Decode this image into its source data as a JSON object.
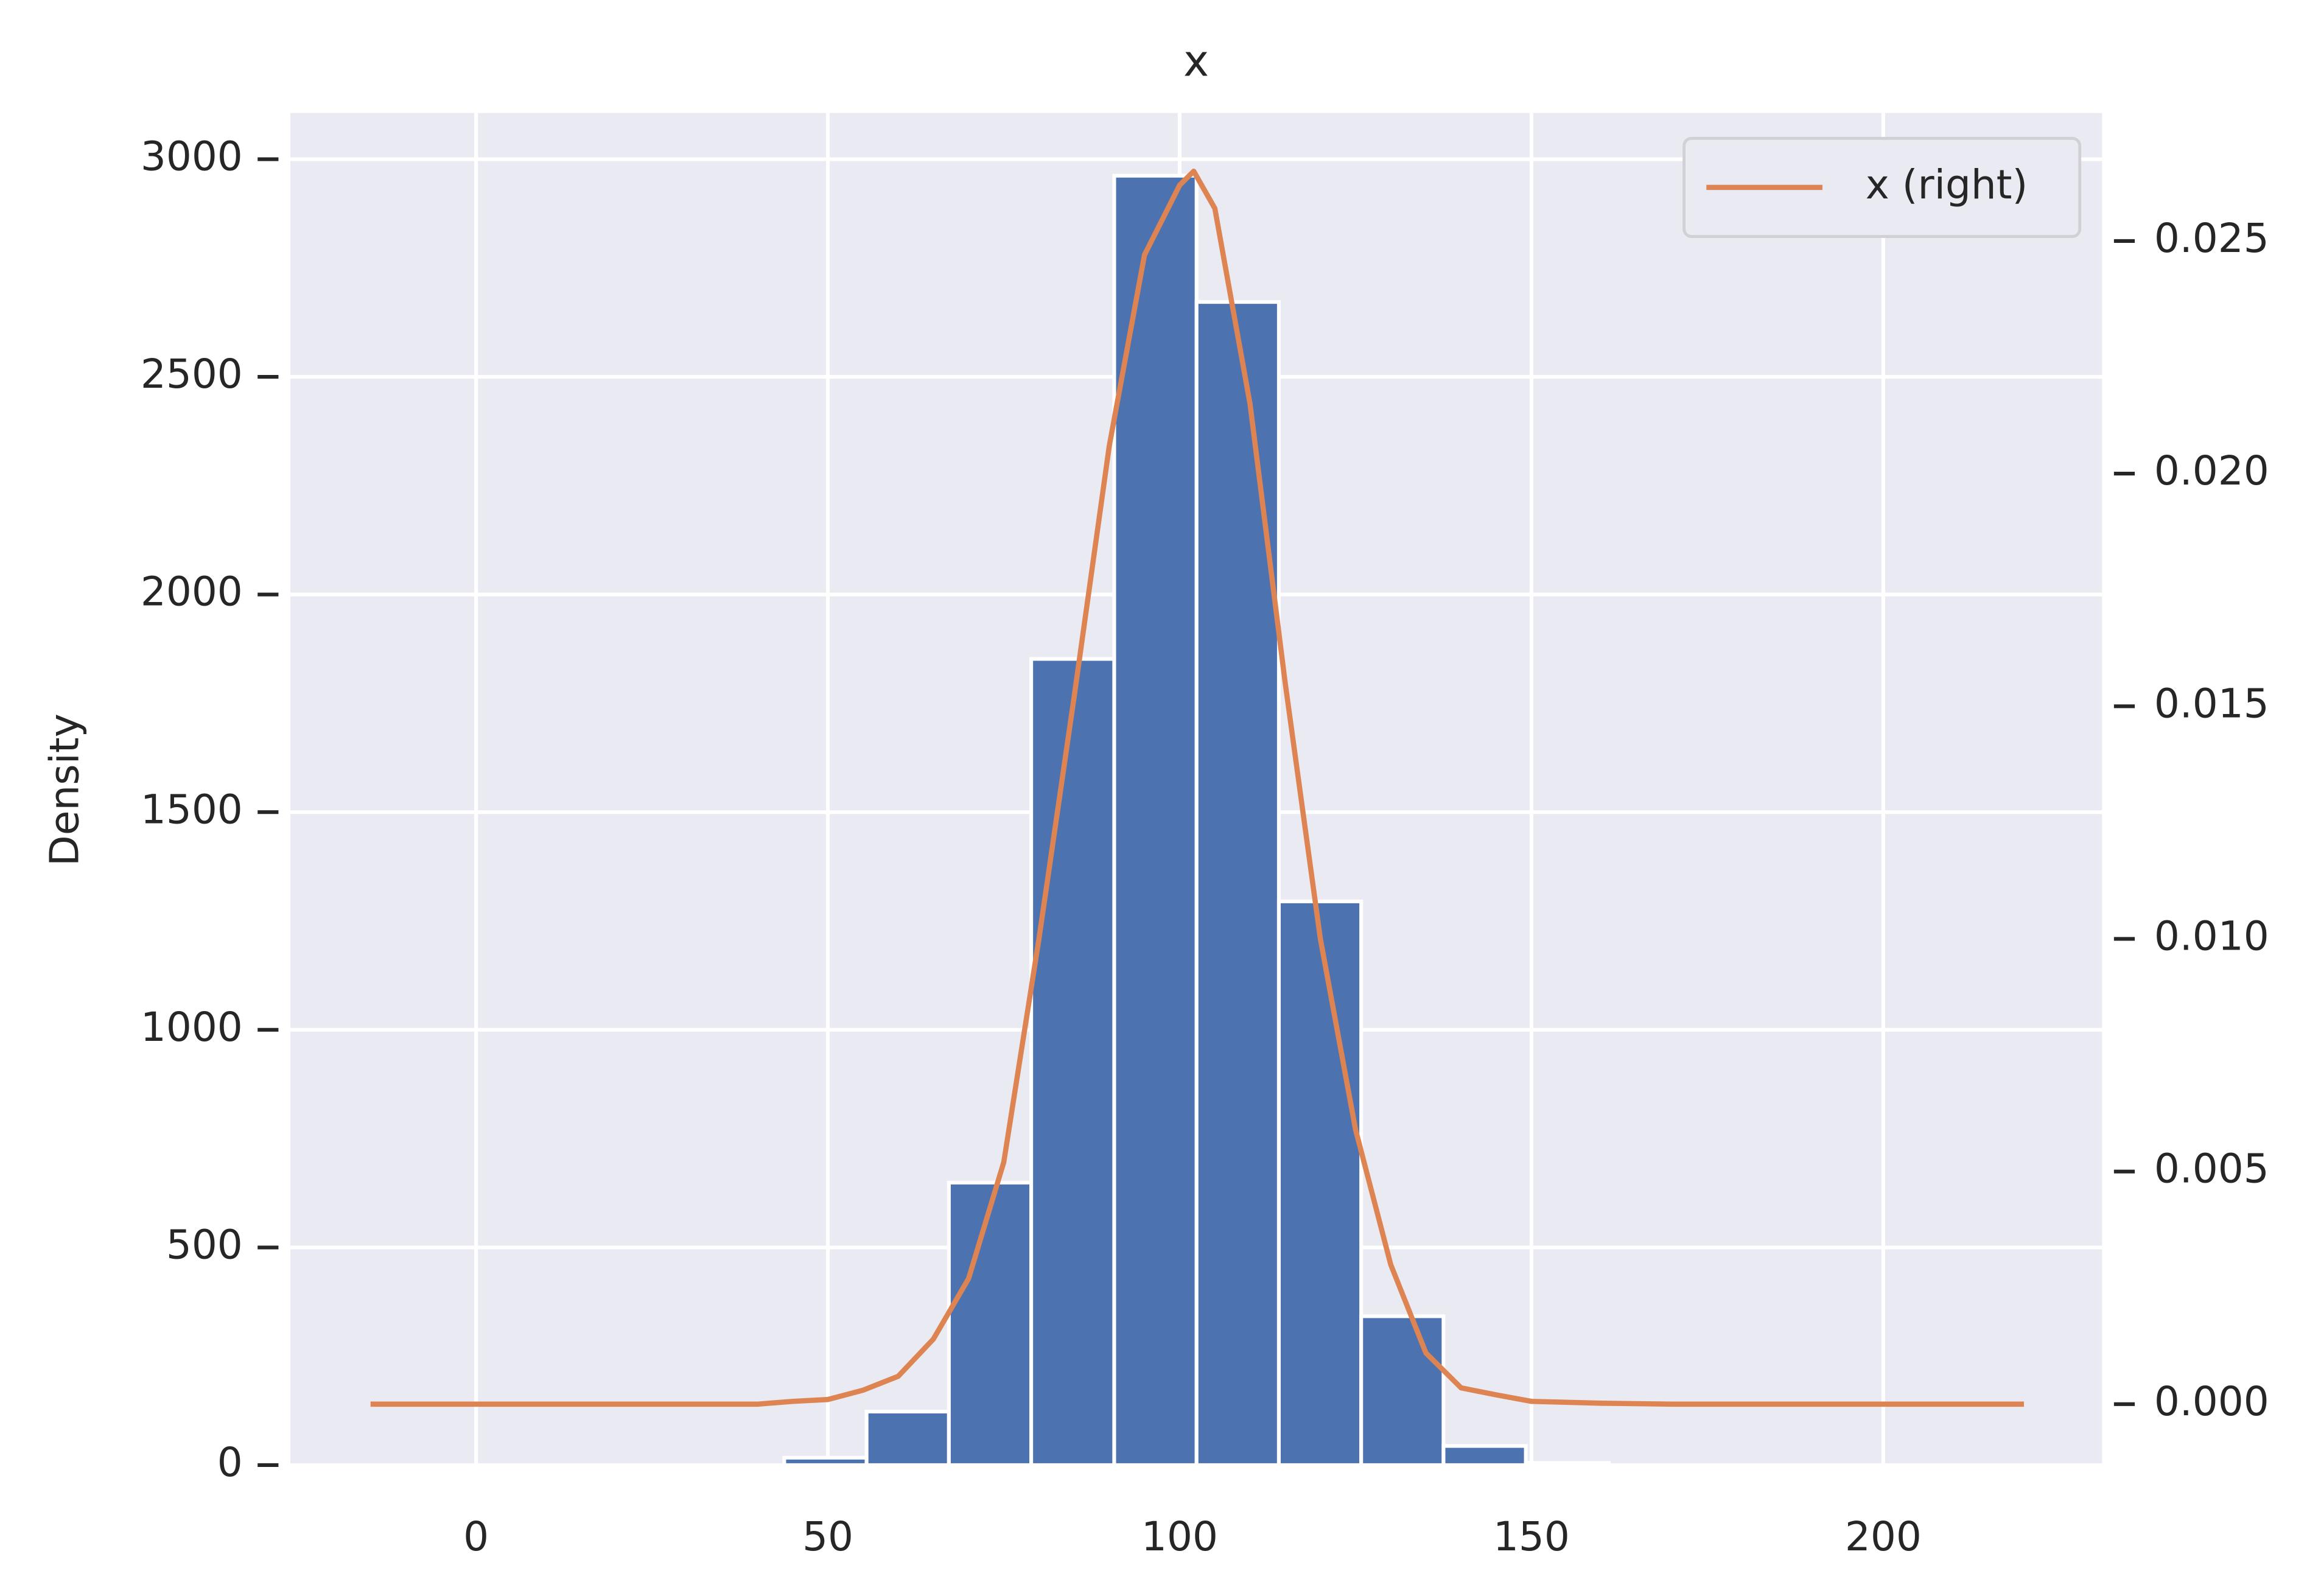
{
  "chart_data": {
    "type": "histogram",
    "title": "x",
    "y_label": "Density",
    "bins": [
      43.8,
      55.5,
      67.2,
      78.9,
      90.7,
      102.4,
      114.1,
      125.8,
      137.5,
      149.2,
      161.0
    ],
    "values": [
      17,
      123,
      649,
      1852,
      2962,
      2672,
      1295,
      342,
      44,
      5
    ],
    "color": "#4c72b0",
    "series": [
      {
        "name": "x (right)",
        "color": "#dd8452",
        "axis": "y2",
        "x": [
          -15,
          0,
          20,
          40,
          45,
          50,
          55,
          60,
          65,
          70,
          75,
          80,
          85,
          90,
          95,
          100,
          102,
          105,
          110,
          115,
          120,
          125,
          130,
          135,
          140,
          145,
          150,
          160,
          170,
          190,
          220
        ],
        "values": [
          0,
          0,
          0,
          0,
          6e-05,
          0.0001,
          0.0003,
          0.0006,
          0.0014,
          0.0027,
          0.0052,
          0.01,
          0.0152,
          0.0206,
          0.0247,
          0.0262,
          0.0265,
          0.0257,
          0.0215,
          0.0155,
          0.01,
          0.0059,
          0.003,
          0.0011,
          0.00035,
          0.0002,
          6e-05,
          2e-05,
          0,
          0,
          0
        ]
      }
    ],
    "xlim": [
      -26.4,
      231.1
    ],
    "xticks": [
      0,
      50,
      100,
      150,
      200
    ],
    "ylim": [
      0,
      3106
    ],
    "yticks": [
      0,
      500,
      1000,
      1500,
      2000,
      2500,
      3000
    ],
    "y2lim": [
      -0.00131,
      0.02775
    ],
    "y2ticks": [
      {
        "value": 0,
        "label": "0.000"
      },
      {
        "value": 0.005,
        "label": "0.005"
      },
      {
        "value": 0.01,
        "label": "0.010"
      },
      {
        "value": 0.015,
        "label": "0.015"
      },
      {
        "value": 0.02,
        "label": "0.020"
      },
      {
        "value": 0.025,
        "label": "0.025"
      }
    ],
    "grid": true,
    "legend": "upper right"
  }
}
